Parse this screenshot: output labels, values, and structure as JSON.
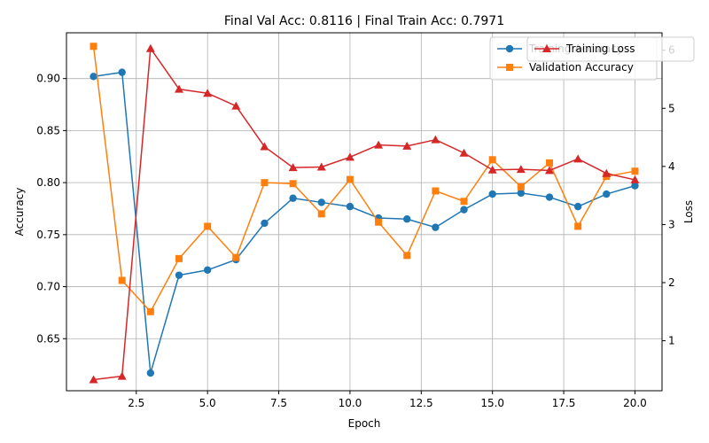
{
  "chart_data": {
    "type": "line",
    "title": "Final Val Acc: 0.8116 | Final Train Acc: 0.7971",
    "xlabel": "Epoch",
    "ylabel_left": "Accuracy",
    "ylabel_right": "Loss",
    "xlim": [
      0.05,
      20.95
    ],
    "ylim_left": [
      0.6,
      0.944
    ],
    "ylim_right": [
      0.14,
      6.3
    ],
    "x_ticks": [
      2.5,
      5.0,
      7.5,
      10.0,
      12.5,
      15.0,
      17.5,
      20.0
    ],
    "x_tick_labels": [
      "2.5",
      "5.0",
      "7.5",
      "10.0",
      "12.5",
      "15.0",
      "17.5",
      "20.0"
    ],
    "y_left_ticks": [
      0.65,
      0.7,
      0.75,
      0.8,
      0.85,
      0.9
    ],
    "y_left_tick_labels": [
      "0.65",
      "0.70",
      "0.75",
      "0.80",
      "0.85",
      "0.90"
    ],
    "y_right_ticks": [
      1,
      2,
      3,
      4,
      5,
      6
    ],
    "y_right_tick_labels": [
      "1",
      "2",
      "3",
      "4",
      "5",
      "6"
    ],
    "grid": true,
    "legend_placement": "top-right",
    "x": [
      1,
      2,
      3,
      4,
      5,
      6,
      7,
      8,
      9,
      10,
      11,
      12,
      13,
      14,
      15,
      16,
      17,
      18,
      19,
      20
    ],
    "series": [
      {
        "name": "Training Accuracy",
        "axis": "left",
        "color": "#1f77b4",
        "marker": "circle",
        "values": [
          0.902,
          0.906,
          0.617,
          0.711,
          0.716,
          0.726,
          0.761,
          0.785,
          0.781,
          0.777,
          0.766,
          0.765,
          0.757,
          0.774,
          0.789,
          0.79,
          0.786,
          0.777,
          0.789,
          0.797
        ]
      },
      {
        "name": "Validation Accuracy",
        "axis": "left",
        "color": "#ff7f0e",
        "marker": "square",
        "values": [
          0.931,
          0.706,
          0.676,
          0.727,
          0.758,
          0.728,
          0.8,
          0.799,
          0.77,
          0.803,
          0.762,
          0.73,
          0.792,
          0.782,
          0.822,
          0.796,
          0.819,
          0.758,
          0.806,
          0.811
        ]
      },
      {
        "name": "Training Loss",
        "axis": "right",
        "color": "#d62728",
        "marker": "triangle",
        "values": [
          0.33,
          0.39,
          6.03,
          5.33,
          5.26,
          5.04,
          4.34,
          3.98,
          3.99,
          4.16,
          4.37,
          4.35,
          4.46,
          4.23,
          3.94,
          3.95,
          3.93,
          4.13,
          3.88,
          3.77
        ]
      }
    ]
  }
}
